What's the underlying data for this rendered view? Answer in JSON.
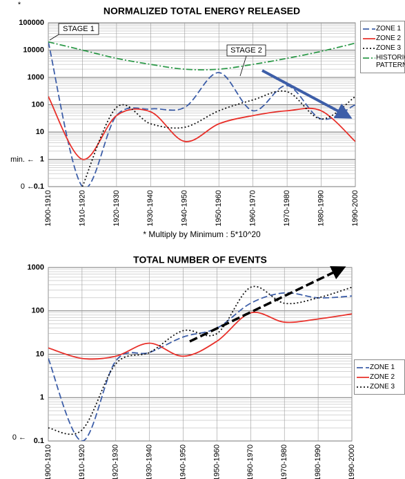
{
  "chart_data": [
    {
      "type": "line",
      "title": "NORMALIZED TOTAL ENERGY RELEASED",
      "note": "* Multiply by Minimum : 5*10^20",
      "annotations": [
        "*",
        "STAGE 1",
        "STAGE 2",
        "min. ←",
        "0 ←"
      ],
      "categories": [
        "1900-1910",
        "1910-1920",
        "1920-1930",
        "1930-1940",
        "1940-1950",
        "1950-1960",
        "1960-1970",
        "1970-1980",
        "1980-1990",
        "1990-2000"
      ],
      "series": [
        {
          "name": "ZONE 1",
          "color": "#3d5ea8",
          "dash": "dashed",
          "values": [
            20000,
            0.1,
            40,
            70,
            80,
            1500,
            60,
            500,
            30,
            100
          ]
        },
        {
          "name": "ZONE 2",
          "color": "#e8302a",
          "dash": "solid",
          "values": [
            200,
            1,
            40,
            55,
            4.5,
            20,
            40,
            60,
            60,
            4.5
          ]
        },
        {
          "name": "ZONE 3",
          "color": "#111111",
          "dash": "dotted",
          "values": [
            null,
            0.1,
            80,
            20,
            15,
            60,
            150,
            300,
            30,
            200
          ]
        },
        {
          "name": "HISTORIC PATTERN",
          "color": "#2e9a4a",
          "dash": "dashdot",
          "values": [
            20000,
            10000,
            5000,
            3000,
            2000,
            2000,
            3000,
            5000,
            9000,
            18000
          ]
        }
      ],
      "ylim": [
        0.1,
        100000
      ],
      "yticks": [
        0.1,
        1,
        10,
        100,
        1000,
        10000,
        100000
      ],
      "log_scale": true,
      "grid": true,
      "legend": "right"
    },
    {
      "type": "line",
      "title": "TOTAL NUMBER OF EVENTS",
      "annotations": [
        "0 ←"
      ],
      "categories": [
        "1900-1910",
        "1910-1920",
        "1920-1930",
        "1930-1940",
        "1940-1950",
        "1950-1960",
        "1960-1970",
        "1970-1980",
        "1980-1990",
        "1990-2000"
      ],
      "series": [
        {
          "name": "ZONE 1",
          "color": "#3d5ea8",
          "dash": "dashed",
          "values": [
            8,
            0.1,
            7,
            11,
            25,
            40,
            150,
            260,
            200,
            220
          ]
        },
        {
          "name": "ZONE 2",
          "color": "#e8302a",
          "dash": "solid",
          "values": [
            14,
            8,
            9,
            18,
            9,
            20,
            90,
            55,
            65,
            85
          ]
        },
        {
          "name": "ZONE 3",
          "color": "#111111",
          "dash": "dotted",
          "values": [
            0.2,
            0.18,
            6,
            11,
            35,
            30,
            350,
            150,
            200,
            350
          ]
        }
      ],
      "ylim": [
        0.1,
        1000
      ],
      "yticks": [
        0.1,
        1,
        10,
        100,
        1000
      ],
      "log_scale": true,
      "grid": true,
      "legend": "right"
    }
  ]
}
